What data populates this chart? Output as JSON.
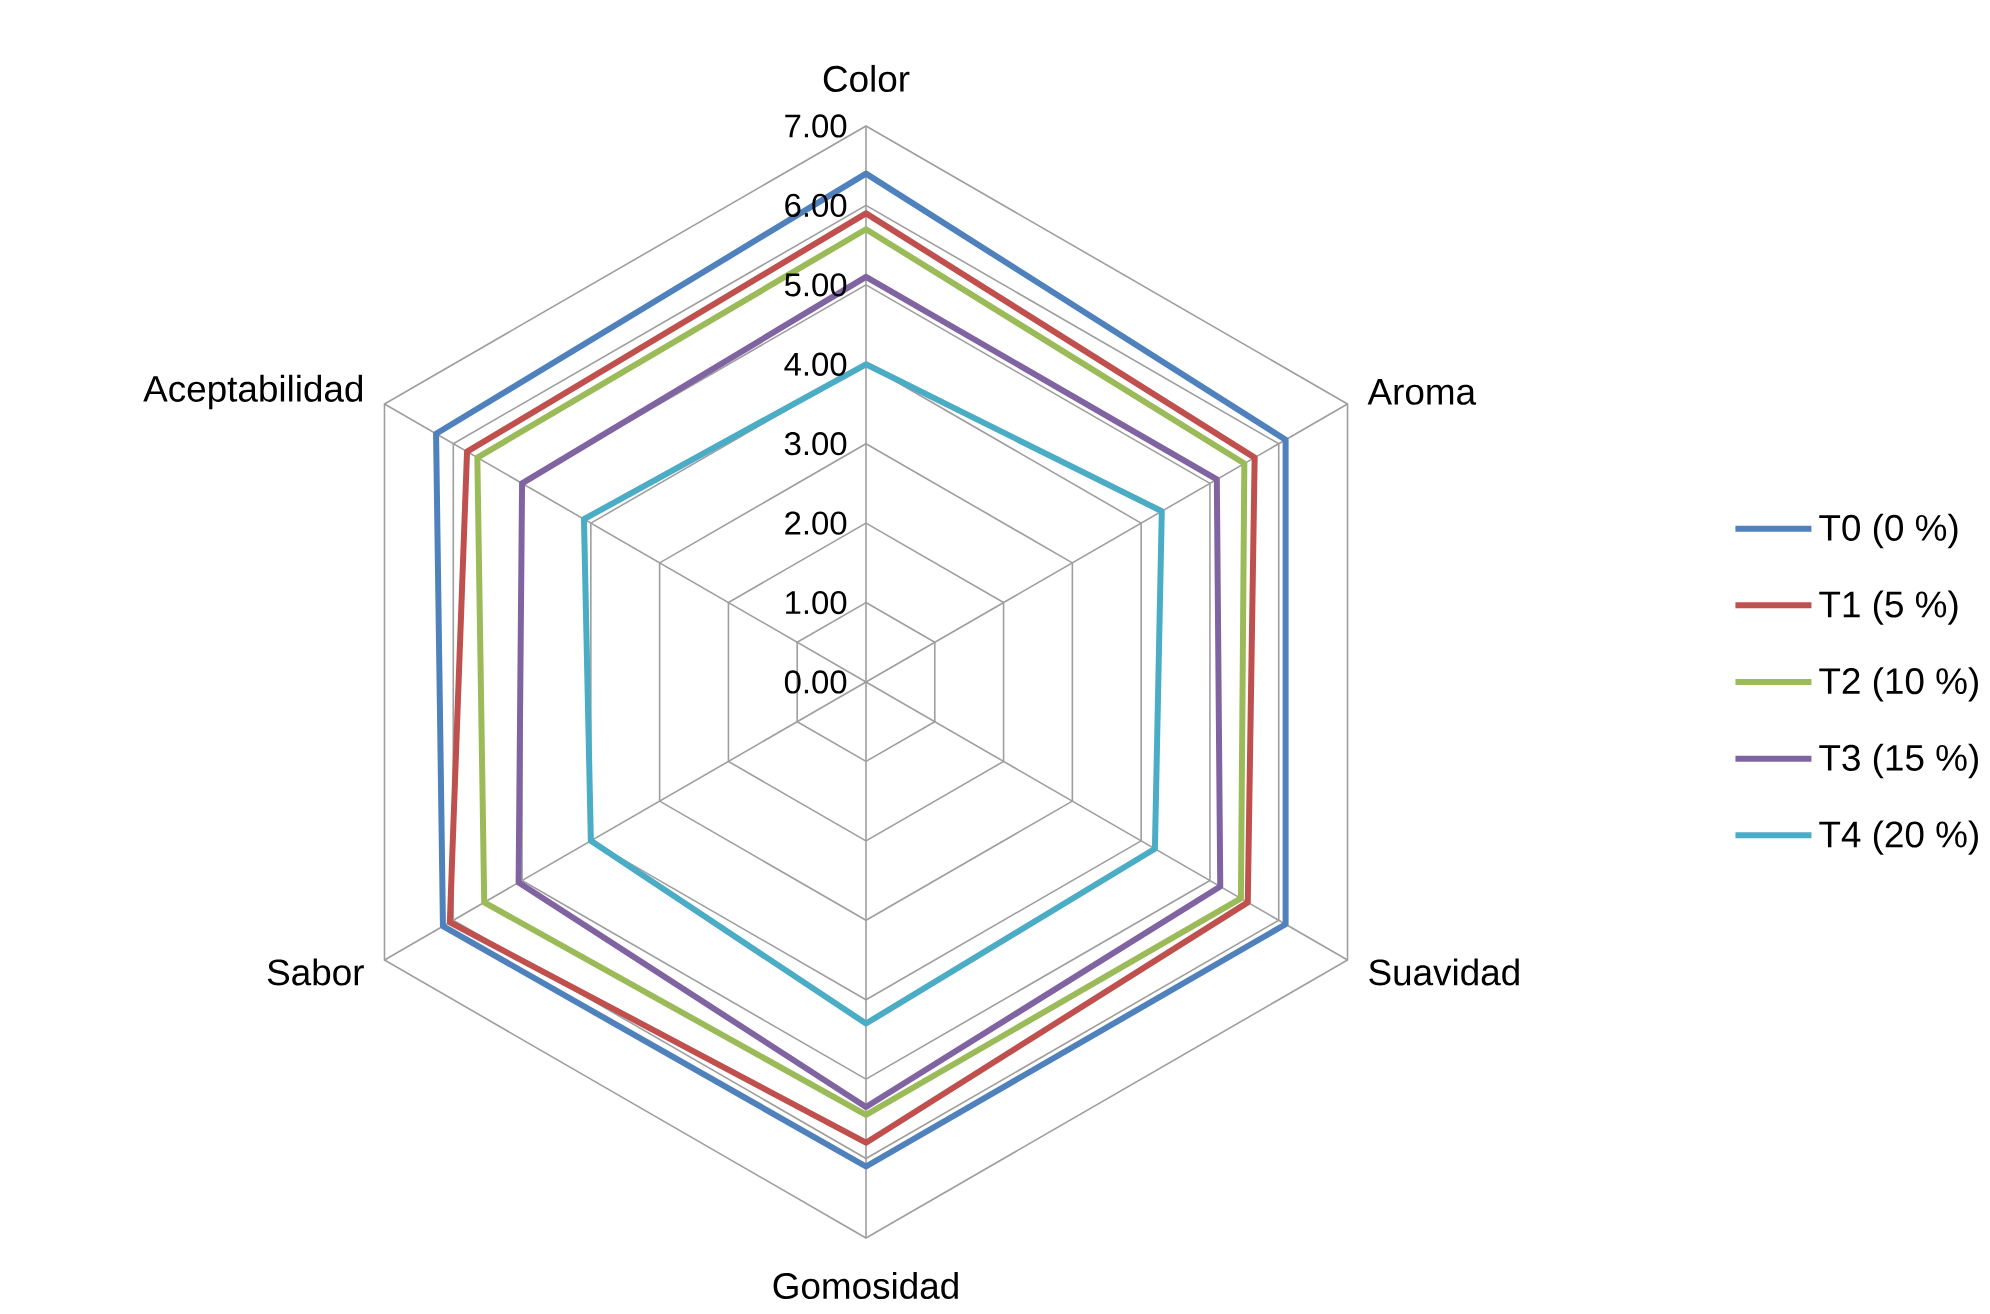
{
  "chart_data": {
    "type": "radar",
    "categories": [
      "Color",
      "Aroma",
      "Suavidad",
      "Gomosidad",
      "Sabor",
      "Aceptabilidad"
    ],
    "series": [
      {
        "name": "T0 (0 %)",
        "color": "#4f81bd",
        "values": [
          6.4,
          6.1,
          6.1,
          6.1,
          6.15,
          6.25
        ]
      },
      {
        "name": "T1 (5 %)",
        "color": "#c0504d",
        "values": [
          5.9,
          5.65,
          5.55,
          5.8,
          6.05,
          5.8
        ]
      },
      {
        "name": "T2 (10 %)",
        "color": "#9bbb59",
        "values": [
          5.7,
          5.5,
          5.45,
          5.45,
          5.55,
          5.65
        ]
      },
      {
        "name": "T3 (15 %)",
        "color": "#8064a2",
        "values": [
          5.1,
          5.1,
          5.15,
          5.35,
          5.05,
          5.0
        ]
      },
      {
        "name": "T4 (20 %)",
        "color": "#4bacc6",
        "values": [
          4.0,
          4.3,
          4.2,
          4.3,
          4.0,
          4.1
        ]
      }
    ],
    "ylim": [
      0,
      7
    ],
    "yticks": [
      {
        "value": 0,
        "label": "0.00"
      },
      {
        "value": 1,
        "label": "1.00"
      },
      {
        "value": 2,
        "label": "2.00"
      },
      {
        "value": 3,
        "label": "3.00"
      },
      {
        "value": 4,
        "label": "4.00"
      },
      {
        "value": 5,
        "label": "5.00"
      },
      {
        "value": 6,
        "label": "6.00"
      },
      {
        "value": 7,
        "label": "7.00"
      }
    ],
    "grid": true,
    "legend": "right"
  }
}
